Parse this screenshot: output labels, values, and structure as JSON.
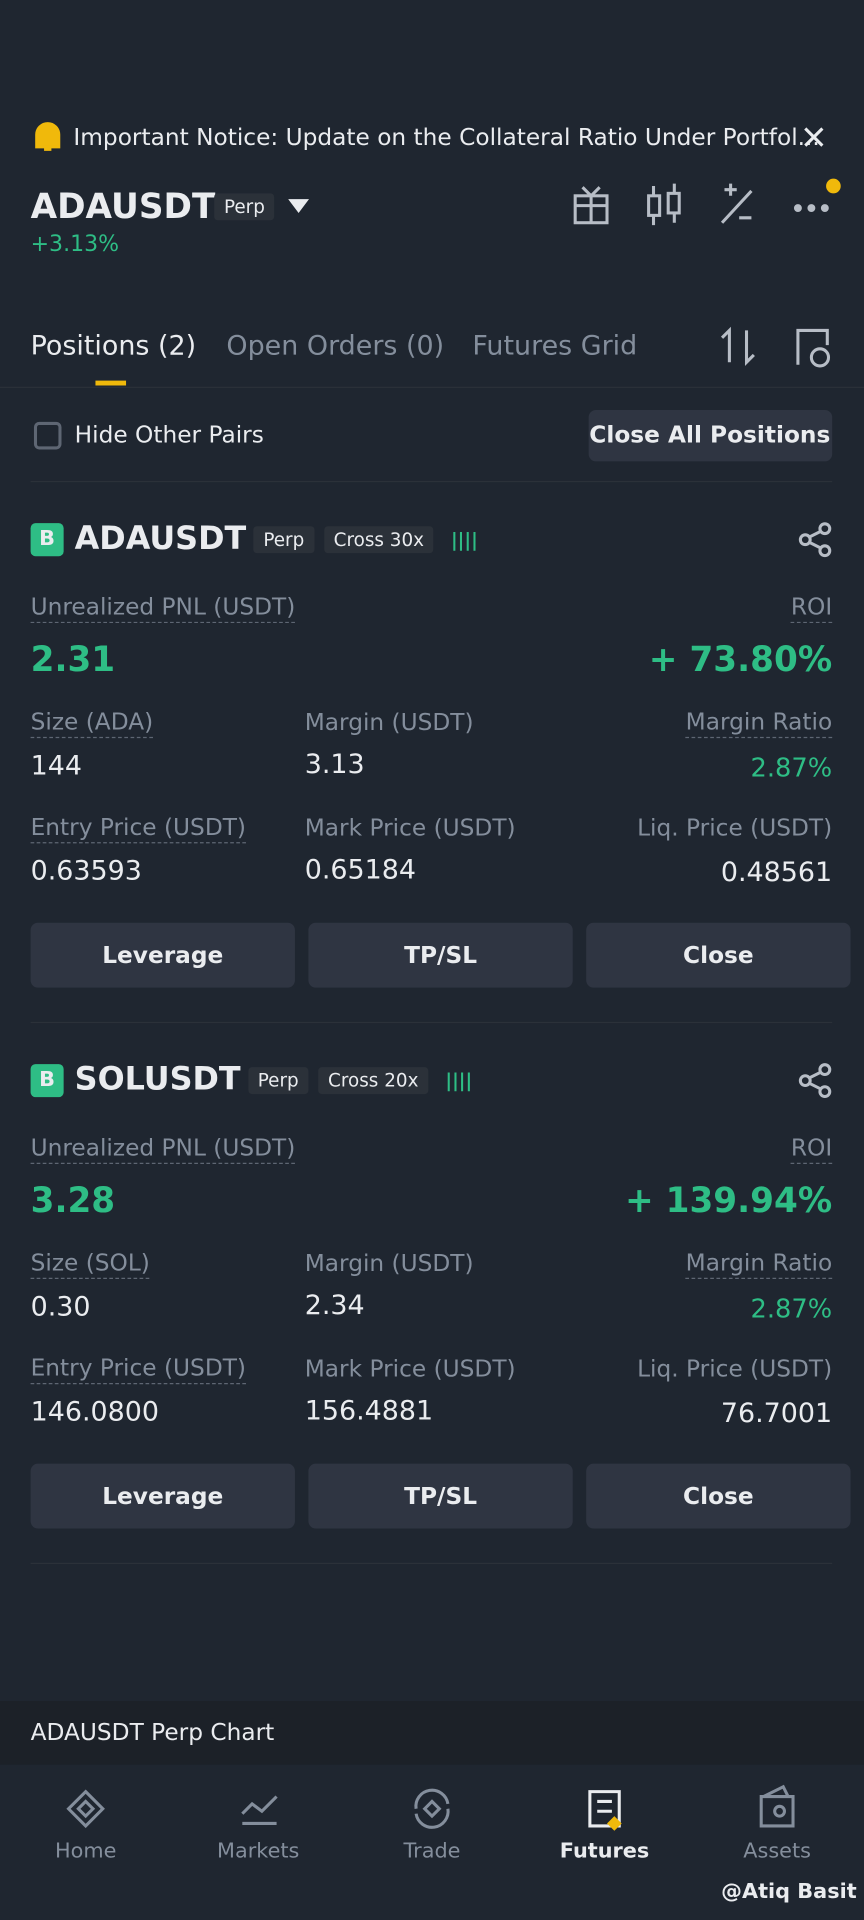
{
  "notice": "Important Notice: Update on the Collateral Ratio Under Portfol...",
  "header": {
    "symbol": "ADAUSDT",
    "tag": "Perp",
    "change": "+3.13%"
  },
  "tabs": [
    "Positions (2)",
    "Open Orders (0)",
    "Futures Grid"
  ],
  "filter": {
    "hide": "Hide Other Pairs",
    "close_all": "Close All Positions"
  },
  "positions": [
    {
      "side": "B",
      "symbol": "ADAUSDT",
      "tag": "Perp",
      "mode": "Cross 30x",
      "pnl_label": "Unrealized PNL (USDT)",
      "pnl": "2.31",
      "roi_label": "ROI",
      "roi": "+ 73.80%",
      "size_label": "Size (ADA)",
      "size": "144",
      "margin_label": "Margin (USDT)",
      "margin": "3.13",
      "ratio_label": "Margin Ratio",
      "ratio": "2.87%",
      "entry_label": "Entry Price (USDT)",
      "entry": "0.63593",
      "mark_label": "Mark Price (USDT)",
      "mark": "0.65184",
      "liq_label": "Liq. Price (USDT)",
      "liq": "0.48561",
      "buttons": [
        "Leverage",
        "TP/SL",
        "Close"
      ]
    },
    {
      "side": "B",
      "symbol": "SOLUSDT",
      "tag": "Perp",
      "mode": "Cross 20x",
      "pnl_label": "Unrealized PNL (USDT)",
      "pnl": "3.28",
      "roi_label": "ROI",
      "roi": "+ 139.94%",
      "size_label": "Size (SOL)",
      "size": "0.30",
      "margin_label": "Margin (USDT)",
      "margin": "2.34",
      "ratio_label": "Margin Ratio",
      "ratio": "2.87%",
      "entry_label": "Entry Price (USDT)",
      "entry": "146.0800",
      "mark_label": "Mark Price (USDT)",
      "mark": "156.4881",
      "liq_label": "Liq. Price (USDT)",
      "liq": "76.7001",
      "buttons": [
        "Leverage",
        "TP/SL",
        "Close"
      ]
    }
  ],
  "chart_bar": "ADAUSDT Perp Chart",
  "nav": [
    "Home",
    "Markets",
    "Trade",
    "Futures",
    "Assets"
  ],
  "watermark": "@Atiq Basit"
}
